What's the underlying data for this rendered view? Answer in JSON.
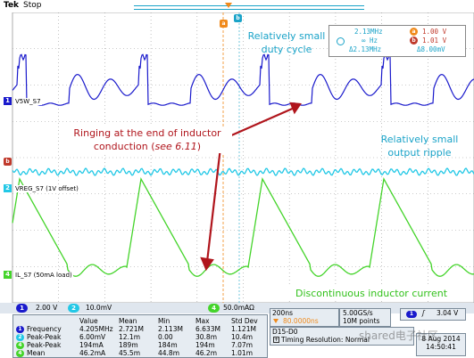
{
  "header": {
    "brand": "Tek",
    "state": "Stop"
  },
  "cursors": {
    "row1_left": "2.13MHz",
    "row1_right": "1.00 V",
    "row2_left": "∞ Hz",
    "row2_right": "1.01 V",
    "row3_left": "Δ2.13MHz",
    "row3_right": "Δ8.00mV",
    "badge_a": "a",
    "badge_b": "b"
  },
  "channels": {
    "ch1": {
      "label": "V5W_S7",
      "number": "1"
    },
    "ch2": {
      "label": "VREG_S7 (1V offset)",
      "number": "2"
    },
    "ch4": {
      "label": "IL_S7 (50mA load)",
      "number": "4"
    },
    "marker_b": "b"
  },
  "annotations": {
    "duty_line1": "Relatively small",
    "duty_line2": "duty cycle",
    "ripple_line1": "Relatively small",
    "ripple_line2": "output ripple",
    "ringing_line1": "Ringing at the end of inductor",
    "ringing_line2a": "conduction (",
    "ringing_line2b": "see 6.11",
    "ringing_line2c": ")",
    "dcm": "Discontinuous inductor current"
  },
  "scales": {
    "ch1": {
      "num": "1",
      "value": "2.00 V"
    },
    "ch2": {
      "num": "2",
      "value": "10.0mV"
    },
    "ch4": {
      "num": "4",
      "value": "50.0mAΩ"
    }
  },
  "measurements": {
    "headers": [
      "Value",
      "Mean",
      "Min",
      "Max",
      "Std Dev"
    ],
    "rows": [
      {
        "ch": "1",
        "name": "Frequency",
        "cells": [
          "4.205MHz",
          "2.721M",
          "2.113M",
          "6.633M",
          "1.121M"
        ]
      },
      {
        "ch": "2",
        "name": "Peak-Peak",
        "cells": [
          "6.00mV",
          "12.1m",
          "0.00",
          "30.8m",
          "10.4m"
        ]
      },
      {
        "ch": "4",
        "name": "Peak-Peak",
        "cells": [
          "194mA",
          "189m",
          "184m",
          "194m",
          "7.07m"
        ]
      },
      {
        "ch": "4",
        "name": "Mean",
        "cells": [
          "46.2mA",
          "45.5m",
          "44.8m",
          "46.2m",
          "1.01m"
        ]
      }
    ]
  },
  "timebase": {
    "scale": "200ns",
    "position": "80.0000ns",
    "sample_rate": "5.00GS/s",
    "points": "10M points"
  },
  "trigger": {
    "ch": "1",
    "slope": "ʃ",
    "level": "3.04 V"
  },
  "digital": {
    "label": "D15-D0",
    "timing": "Timing Resolution: Normal"
  },
  "datetime": {
    "date": "8 Aug 2014",
    "time": "14:50:41"
  },
  "watermark": "shared电子社区",
  "colors": {
    "ch1": "#1a1acc",
    "ch2": "#22c8e6",
    "ch4": "#44d42a",
    "red": "#b0151c",
    "annot_blue": "#1aa3c8",
    "annot_green": "#33c21c",
    "trigger": "#f08a1c"
  }
}
